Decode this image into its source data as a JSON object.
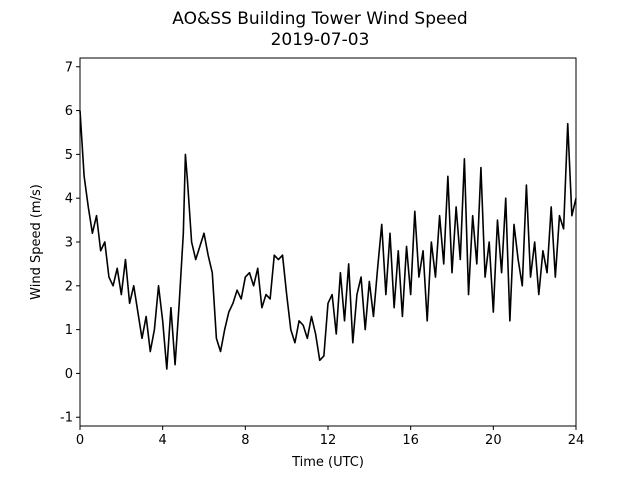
{
  "chart_data": {
    "type": "line",
    "title": "AO&SS Building Tower Wind Speed",
    "subtitle": "2019-07-03",
    "xlabel": "Time (UTC)",
    "ylabel": "Wind Speed (m/s)",
    "xlim": [
      0,
      24
    ],
    "xticks": [
      0,
      4,
      8,
      12,
      16,
      20,
      24
    ],
    "ylim": [
      -1.2,
      7.2
    ],
    "yticks": [
      -1,
      0,
      1,
      2,
      3,
      4,
      5,
      6,
      7
    ],
    "grid": false,
    "x": [
      0.0,
      0.2,
      0.4,
      0.6,
      0.8,
      1.0,
      1.2,
      1.4,
      1.6,
      1.8,
      2.0,
      2.2,
      2.4,
      2.6,
      2.8,
      3.0,
      3.2,
      3.4,
      3.6,
      3.8,
      4.0,
      4.2,
      4.4,
      4.6,
      4.8,
      5.0,
      5.1,
      5.2,
      5.4,
      5.6,
      5.8,
      6.0,
      6.2,
      6.4,
      6.6,
      6.8,
      7.0,
      7.2,
      7.4,
      7.6,
      7.8,
      8.0,
      8.2,
      8.4,
      8.6,
      8.8,
      9.0,
      9.2,
      9.4,
      9.6,
      9.8,
      10.0,
      10.2,
      10.4,
      10.6,
      10.8,
      11.0,
      11.2,
      11.4,
      11.6,
      11.8,
      12.0,
      12.2,
      12.4,
      12.6,
      12.8,
      13.0,
      13.2,
      13.4,
      13.6,
      13.8,
      14.0,
      14.2,
      14.4,
      14.6,
      14.8,
      15.0,
      15.2,
      15.4,
      15.6,
      15.8,
      16.0,
      16.2,
      16.4,
      16.6,
      16.8,
      17.0,
      17.2,
      17.4,
      17.6,
      17.8,
      18.0,
      18.2,
      18.4,
      18.6,
      18.8,
      19.0,
      19.2,
      19.4,
      19.6,
      19.8,
      20.0,
      20.2,
      20.4,
      20.6,
      20.8,
      21.0,
      21.2,
      21.4,
      21.6,
      21.8,
      22.0,
      22.2,
      22.4,
      22.6,
      22.8,
      23.0,
      23.2,
      23.4,
      23.6,
      23.8,
      24.0
    ],
    "series": [
      {
        "color": "#000000",
        "values": [
          6.0,
          4.5,
          3.8,
          3.2,
          3.6,
          2.8,
          3.0,
          2.2,
          2.0,
          2.4,
          1.8,
          2.6,
          1.6,
          2.0,
          1.4,
          0.8,
          1.3,
          0.5,
          1.0,
          2.0,
          1.2,
          0.1,
          1.5,
          0.2,
          1.6,
          3.2,
          5.0,
          4.4,
          3.0,
          2.6,
          2.9,
          3.2,
          2.7,
          2.3,
          0.8,
          0.5,
          1.0,
          1.4,
          1.6,
          1.9,
          1.7,
          2.2,
          2.3,
          2.0,
          2.4,
          1.5,
          1.8,
          1.7,
          2.7,
          2.6,
          2.7,
          1.8,
          1.0,
          0.7,
          1.2,
          1.1,
          0.8,
          1.3,
          0.9,
          0.3,
          0.4,
          1.6,
          1.8,
          0.9,
          2.3,
          1.2,
          2.5,
          0.7,
          1.8,
          2.2,
          1.0,
          2.1,
          1.3,
          2.4,
          3.4,
          1.8,
          3.2,
          1.5,
          2.8,
          1.3,
          2.9,
          1.8,
          3.7,
          2.2,
          2.8,
          1.2,
          3.0,
          2.2,
          3.6,
          2.5,
          4.5,
          2.3,
          3.8,
          2.6,
          4.9,
          1.8,
          3.6,
          2.5,
          4.7,
          2.2,
          3.0,
          1.4,
          3.5,
          2.3,
          4.0,
          1.2,
          3.4,
          2.6,
          2.0,
          4.3,
          2.2,
          3.0,
          1.8,
          2.8,
          2.3,
          3.8,
          2.2,
          3.6,
          3.3,
          5.7,
          3.6,
          4.0
        ]
      }
    ]
  }
}
